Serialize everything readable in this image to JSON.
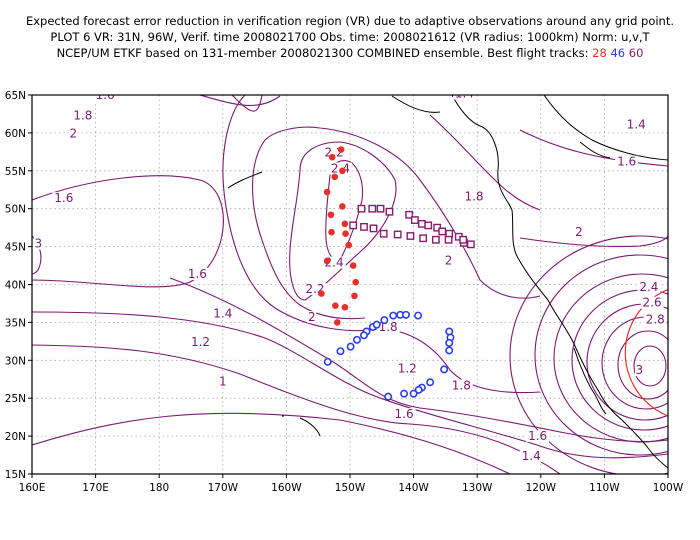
{
  "header": {
    "line1": "Expected forecast error reduction in verification region (VR) due to adaptive observations around any grid point.",
    "line2": "PLOT 6 VR: 31N, 96W, Verif. time 2008021700 Obs. time: 2008021612 (VR radius: 1000km) Norm: u,v,T",
    "line3_prefix": "NCEP/UM ETKF based on 131-member 2008021300 COMBINED ensemble.  Best flight tracks:",
    "tracks": [
      {
        "label": "28",
        "color": "#e8302a"
      },
      {
        "label": "46",
        "color": "#2a3ee8"
      },
      {
        "label": "60",
        "color": "#8a1a6e"
      }
    ]
  },
  "map": {
    "lon_range": [
      160,
      260
    ],
    "lat_range": [
      15,
      65
    ],
    "lon_ticks": [
      "160E",
      "170E",
      "180",
      "170W",
      "160W",
      "150W",
      "140W",
      "130W",
      "120W",
      "110W",
      "100W"
    ],
    "lat_ticks": [
      "15N",
      "20N",
      "25N",
      "30N",
      "35N",
      "40N",
      "45N",
      "50N",
      "55N",
      "60N",
      "65N"
    ],
    "contour_labels": [
      {
        "text": "1.6",
        "lon": 171.5,
        "lat": 64.6
      },
      {
        "text": "1.8",
        "lon": 168.0,
        "lat": 61.9
      },
      {
        "text": "2",
        "lon": 166.5,
        "lat": 59.5
      },
      {
        "text": "1.4",
        "lon": 228.0,
        "lat": 64.8
      },
      {
        "text": "1.4",
        "lon": 255.0,
        "lat": 60.7
      },
      {
        "text": "1.6",
        "lon": 253.5,
        "lat": 55.8
      },
      {
        "text": "1.6",
        "lon": 165.0,
        "lat": 51.0
      },
      {
        "text": "2.2",
        "lon": 207.5,
        "lat": 57.0
      },
      {
        "text": "2.4",
        "lon": 208.5,
        "lat": 54.9
      },
      {
        "text": "2.4",
        "lon": 207.5,
        "lat": 42.5
      },
      {
        "text": "2.2",
        "lon": 204.5,
        "lat": 39.0
      },
      {
        "text": "2",
        "lon": 204.0,
        "lat": 35.3
      },
      {
        "text": "1.8",
        "lon": 216.0,
        "lat": 34.0
      },
      {
        "text": "1.8",
        "lon": 229.5,
        "lat": 51.2
      },
      {
        "text": "2",
        "lon": 225.5,
        "lat": 42.8
      },
      {
        "text": "2",
        "lon": 246.0,
        "lat": 46.5
      },
      {
        "text": "1.8",
        "lon": 227.5,
        "lat": 26.3
      },
      {
        "text": "1.6",
        "lon": 186.0,
        "lat": 41.0
      },
      {
        "text": "1.4",
        "lon": 190.0,
        "lat": 35.8
      },
      {
        "text": "1.2",
        "lon": 186.5,
        "lat": 32.0
      },
      {
        "text": "1",
        "lon": 190.0,
        "lat": 26.8
      },
      {
        "text": "1.2",
        "lon": 219.0,
        "lat": 28.5
      },
      {
        "text": "1.6",
        "lon": 218.5,
        "lat": 22.5
      },
      {
        "text": "1.6",
        "lon": 239.5,
        "lat": 19.6
      },
      {
        "text": "1.4",
        "lon": 238.5,
        "lat": 17.0
      },
      {
        "text": "2.4",
        "lon": 257.0,
        "lat": 39.3
      },
      {
        "text": "2.6",
        "lon": 257.5,
        "lat": 37.2
      },
      {
        "text": "2.8",
        "lon": 258.0,
        "lat": 35.0
      },
      {
        "text": "3",
        "lon": 255.5,
        "lat": 28.3
      },
      {
        "text": "3",
        "lon": 161.0,
        "lat": 45.0
      }
    ],
    "verification_region": {
      "lat": 31,
      "lon": 264,
      "radius_km": 1000,
      "color": "#e8302a"
    },
    "track_28": {
      "color": "#e8302a",
      "marker": "dot",
      "points": [
        [
          208.6,
          57.8
        ],
        [
          207.2,
          56.8
        ],
        [
          208.8,
          55.0
        ],
        [
          207.6,
          54.2
        ],
        [
          206.4,
          52.2
        ],
        [
          208.8,
          50.3
        ],
        [
          207.0,
          49.2
        ],
        [
          209.2,
          48.0
        ],
        [
          207.1,
          46.9
        ],
        [
          209.3,
          46.7
        ],
        [
          209.8,
          45.2
        ],
        [
          206.4,
          43.1
        ],
        [
          210.5,
          42.5
        ],
        [
          210.9,
          40.3
        ],
        [
          210.7,
          38.5
        ],
        [
          205.5,
          38.8
        ],
        [
          209.2,
          37.0
        ],
        [
          207.7,
          37.2
        ],
        [
          208.0,
          35.0
        ]
      ]
    },
    "track_46": {
      "color": "#2a3ee8",
      "marker": "circle",
      "points": [
        [
          212.6,
          33.8
        ],
        [
          213.6,
          34.4
        ],
        [
          214.2,
          34.7
        ],
        [
          215.4,
          35.3
        ],
        [
          216.8,
          35.9
        ],
        [
          217.9,
          36.0
        ],
        [
          218.8,
          36.0
        ],
        [
          220.7,
          35.9
        ],
        [
          225.6,
          33.8
        ],
        [
          225.8,
          33.0
        ],
        [
          225.6,
          32.3
        ],
        [
          225.6,
          31.3
        ],
        [
          224.8,
          28.8
        ],
        [
          222.6,
          27.1
        ],
        [
          221.3,
          26.4
        ],
        [
          220.8,
          26.1
        ],
        [
          220.0,
          25.6
        ],
        [
          218.5,
          25.6
        ],
        [
          216.0,
          25.2
        ],
        [
          212.2,
          33.3
        ],
        [
          211.1,
          32.7
        ],
        [
          210.1,
          31.8
        ],
        [
          208.5,
          31.2
        ],
        [
          206.5,
          29.8
        ]
      ]
    },
    "track_60": {
      "color": "#8a1a6e",
      "marker": "square",
      "points": [
        [
          211.8,
          50.0
        ],
        [
          213.5,
          50.0
        ],
        [
          214.8,
          50.0
        ],
        [
          216.2,
          49.6
        ],
        [
          219.3,
          49.2
        ],
        [
          220.2,
          48.5
        ],
        [
          221.3,
          48.0
        ],
        [
          222.3,
          47.8
        ],
        [
          223.7,
          47.5
        ],
        [
          224.5,
          47.0
        ],
        [
          225.6,
          46.7
        ],
        [
          227.1,
          46.3
        ],
        [
          227.9,
          45.5
        ],
        [
          229.0,
          45.3
        ],
        [
          227.8,
          45.9
        ],
        [
          225.5,
          45.9
        ],
        [
          223.5,
          45.9
        ],
        [
          221.5,
          46.1
        ],
        [
          219.5,
          46.4
        ],
        [
          217.5,
          46.6
        ],
        [
          215.3,
          46.7
        ],
        [
          213.7,
          47.4
        ],
        [
          212.2,
          47.6
        ],
        [
          210.5,
          47.8
        ]
      ]
    }
  }
}
